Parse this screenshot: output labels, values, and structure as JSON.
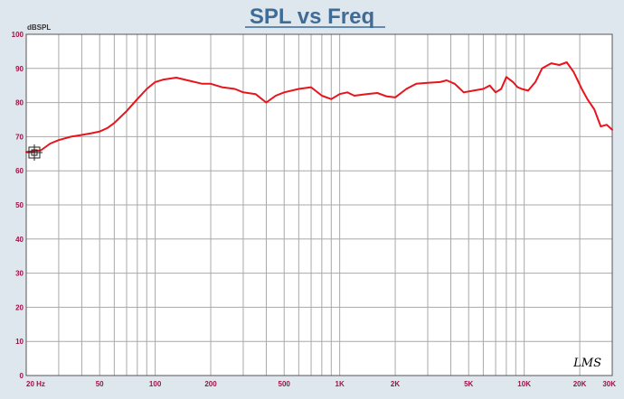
{
  "chart_data": {
    "type": "line",
    "title": "SPL vs Freq",
    "ylabel": "dBSPL",
    "xlabel": "",
    "x_scale": "log",
    "xlim": [
      20,
      30000
    ],
    "ylim": [
      0,
      100
    ],
    "grid": true,
    "y_ticks": [
      {
        "value": 0,
        "label": "0"
      },
      {
        "value": 10,
        "label": "10"
      },
      {
        "value": 20,
        "label": "20"
      },
      {
        "value": 30,
        "label": "30"
      },
      {
        "value": 40,
        "label": "40"
      },
      {
        "value": 50,
        "label": "50"
      },
      {
        "value": 60,
        "label": "60"
      },
      {
        "value": 70,
        "label": "70"
      },
      {
        "value": 80,
        "label": "80"
      },
      {
        "value": 90,
        "label": "90"
      },
      {
        "value": 100,
        "label": "100"
      }
    ],
    "x_ticks": [
      {
        "value": 20,
        "label": "20  Hz"
      },
      {
        "value": 50,
        "label": "50"
      },
      {
        "value": 100,
        "label": "100"
      },
      {
        "value": 200,
        "label": "200"
      },
      {
        "value": 500,
        "label": "500"
      },
      {
        "value": 1000,
        "label": "1K"
      },
      {
        "value": 2000,
        "label": "2K"
      },
      {
        "value": 5000,
        "label": "5K"
      },
      {
        "value": 10000,
        "label": "10K"
      },
      {
        "value": 20000,
        "label": "20K"
      },
      {
        "value": 30000,
        "label": "30K"
      }
    ],
    "series": [
      {
        "color": "#e8141c",
        "x": [
          20,
          24,
          27,
          30,
          35,
          40,
          45,
          50,
          55,
          60,
          70,
          80,
          90,
          100,
          110,
          130,
          150,
          180,
          200,
          230,
          270,
          300,
          350,
          400,
          450,
          500,
          600,
          700,
          800,
          900,
          1000,
          1100,
          1200,
          1400,
          1600,
          1800,
          2000,
          2300,
          2600,
          3000,
          3500,
          3800,
          4200,
          4700,
          5300,
          6000,
          6500,
          7000,
          7500,
          8000,
          8700,
          9200,
          9700,
          10500,
          11500,
          12500,
          14000,
          15500,
          17000,
          18500,
          19500,
          20500,
          22000,
          24000,
          26000,
          28000,
          30000
        ],
        "y": [
          65.5,
          66,
          68,
          69,
          70,
          70.5,
          71,
          71.5,
          72.5,
          74,
          77.5,
          81,
          84,
          86,
          86.7,
          87.3,
          86.5,
          85.5,
          85.5,
          84.5,
          84,
          83,
          82.5,
          80,
          82,
          83,
          84,
          84.5,
          82,
          81,
          82.5,
          83,
          82,
          82.5,
          82.8,
          81.8,
          81.5,
          84,
          85.5,
          85.8,
          86,
          86.5,
          85.5,
          83,
          83.5,
          84,
          85,
          83,
          84,
          87.5,
          86,
          84.5,
          84,
          83.5,
          86,
          90,
          91.5,
          91,
          91.8,
          89,
          86.5,
          84,
          81,
          78,
          73,
          73.5,
          72
        ]
      }
    ],
    "annotations": [
      "LMS"
    ]
  }
}
